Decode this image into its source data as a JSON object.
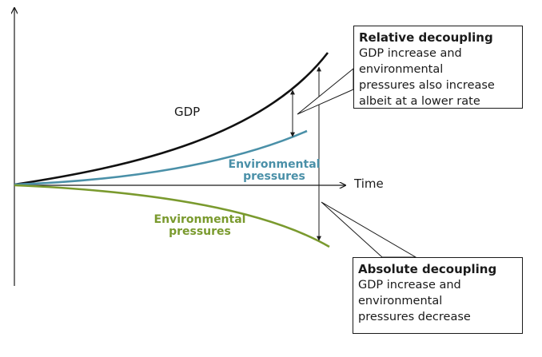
{
  "labels": {
    "gdp": "GDP",
    "time": "Time",
    "env_upper_line1": "Environmental",
    "env_upper_line2": "pressures",
    "env_lower_line1": "Environmental",
    "env_lower_line2": "pressures"
  },
  "relative_callout": {
    "title": "Relative decoupling",
    "lines": [
      "GDP increase and",
      "environmental",
      "pressures also increase",
      "albeit at a lower rate"
    ]
  },
  "absolute_callout": {
    "title": "Absolute decoupling",
    "lines": [
      "GDP increase and",
      "environmental",
      "pressures decrease"
    ]
  },
  "colors": {
    "gdp": "#111111",
    "env_upper": "#4a90a8",
    "env_lower": "#7a9a2e",
    "axis": "#1a1a1a"
  }
}
